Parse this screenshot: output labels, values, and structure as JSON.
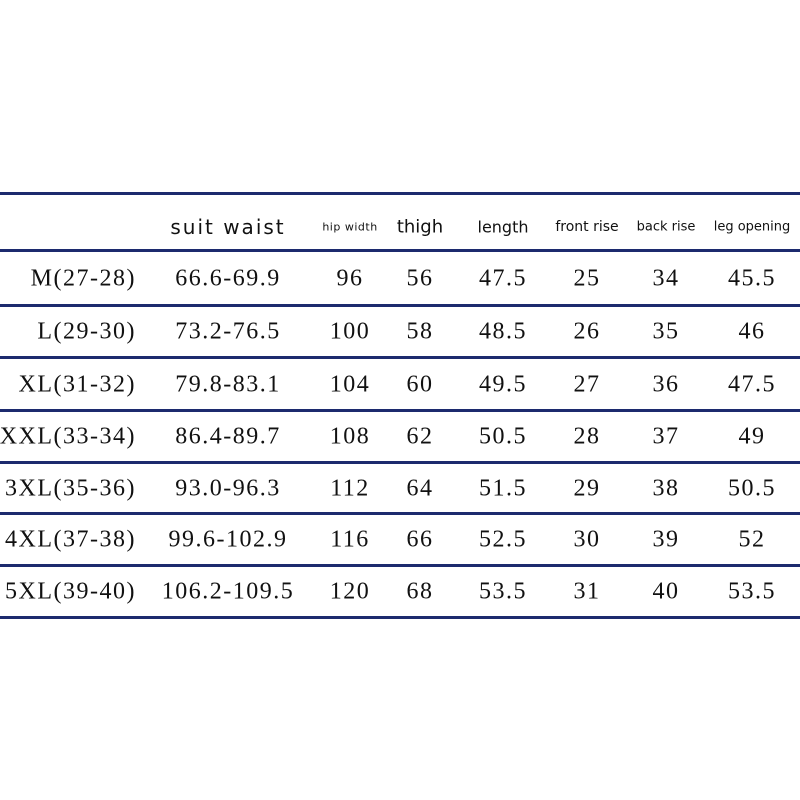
{
  "table": {
    "headers": [
      "suit waist",
      "hip width",
      "thigh",
      "length",
      "front rise",
      "back rise",
      "leg opening"
    ],
    "rows": [
      [
        "M(27-28)",
        "66.6-69.9",
        96,
        56,
        47.5,
        25,
        34,
        45.5
      ],
      [
        "L(29-30)",
        "73.2-76.5",
        100,
        58,
        48.5,
        26,
        35,
        46
      ],
      [
        "XL(31-32)",
        "79.8-83.1",
        104,
        60,
        49.5,
        27,
        36,
        47.5
      ],
      [
        "XXL(33-34)",
        "86.4-89.7",
        108,
        62,
        50.5,
        28,
        37,
        49
      ],
      [
        "3XL(35-36)",
        "93.0-96.3",
        112,
        64,
        51.5,
        29,
        38,
        50.5
      ],
      [
        "4XL(37-38)",
        "99.6-102.9",
        116,
        66,
        52.5,
        30,
        39,
        52
      ],
      [
        "5XL(39-40)",
        "106.2-109.5",
        120,
        68,
        53.5,
        31,
        40,
        53.5
      ]
    ]
  }
}
